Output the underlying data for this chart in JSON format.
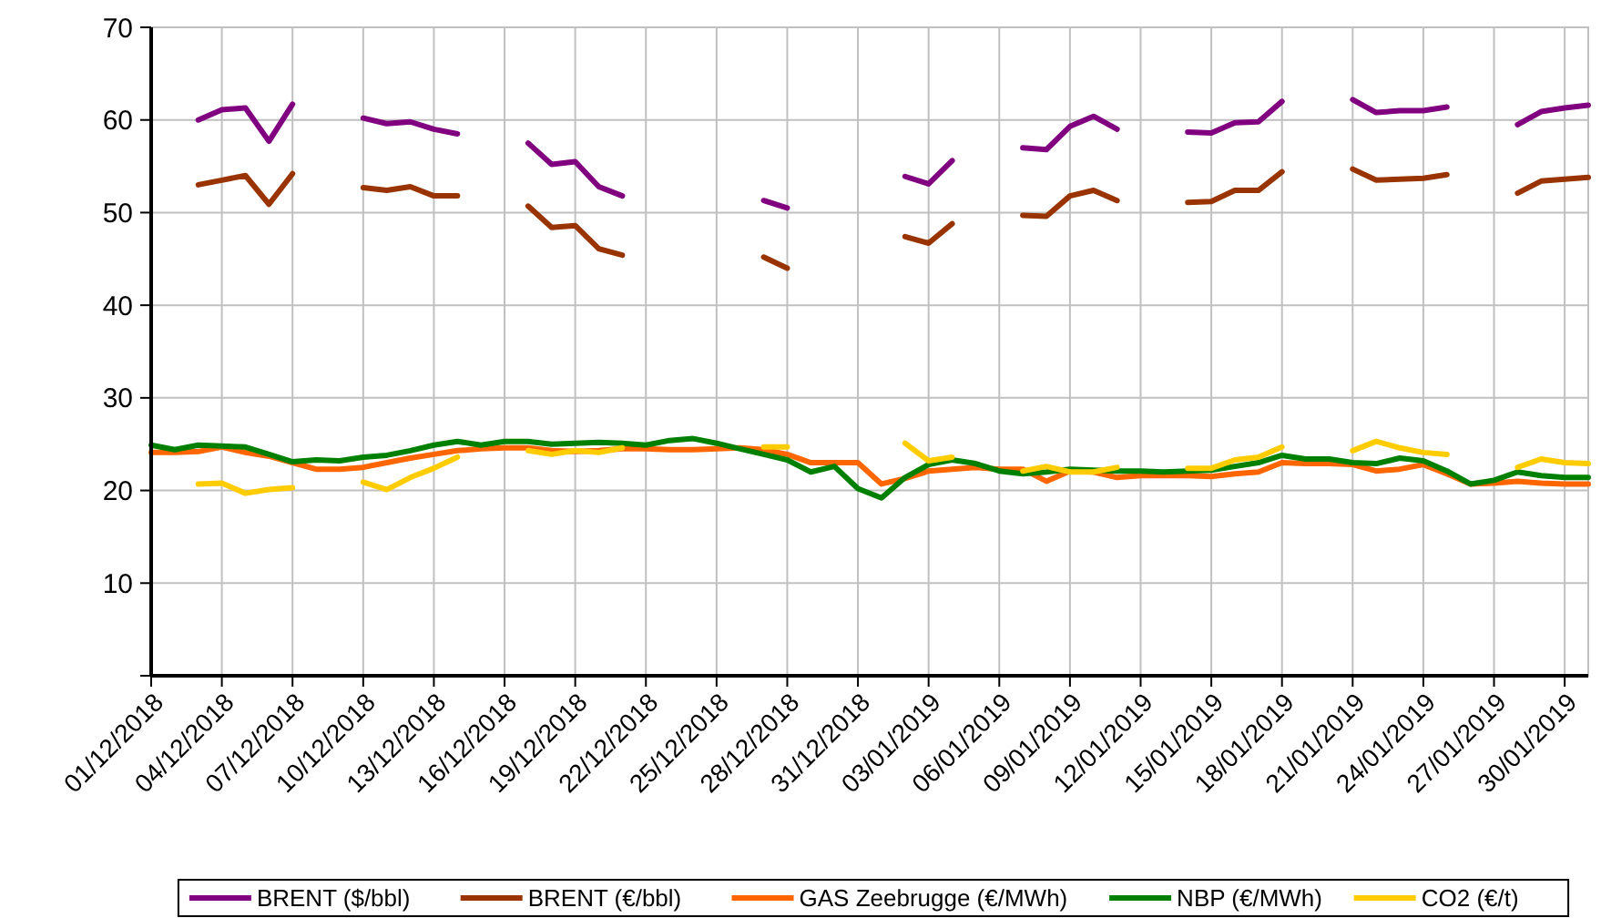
{
  "chart_data": {
    "type": "line",
    "x": [
      "2018-12-01",
      "2018-12-02",
      "2018-12-03",
      "2018-12-04",
      "2018-12-05",
      "2018-12-06",
      "2018-12-07",
      "2018-12-08",
      "2018-12-09",
      "2018-12-10",
      "2018-12-11",
      "2018-12-12",
      "2018-12-13",
      "2018-12-14",
      "2018-12-15",
      "2018-12-16",
      "2018-12-17",
      "2018-12-18",
      "2018-12-19",
      "2018-12-20",
      "2018-12-21",
      "2018-12-22",
      "2018-12-23",
      "2018-12-24",
      "2018-12-25",
      "2018-12-26",
      "2018-12-27",
      "2018-12-28",
      "2018-12-29",
      "2018-12-30",
      "2018-12-31",
      "2019-01-01",
      "2019-01-02",
      "2019-01-03",
      "2019-01-04",
      "2019-01-05",
      "2019-01-06",
      "2019-01-07",
      "2019-01-08",
      "2019-01-09",
      "2019-01-10",
      "2019-01-11",
      "2019-01-12",
      "2019-01-13",
      "2019-01-14",
      "2019-01-15",
      "2019-01-16",
      "2019-01-17",
      "2019-01-18",
      "2019-01-19",
      "2019-01-20",
      "2019-01-21",
      "2019-01-22",
      "2019-01-23",
      "2019-01-24",
      "2019-01-25",
      "2019-01-26",
      "2019-01-27",
      "2019-01-28",
      "2019-01-29",
      "2019-01-30",
      "2019-01-31"
    ],
    "series": [
      {
        "name": "BRENT ($/bbl)",
        "color": "#800080",
        "values": [
          null,
          null,
          60.0,
          61.1,
          61.3,
          57.7,
          61.7,
          null,
          null,
          60.2,
          59.6,
          59.8,
          59.0,
          58.5,
          null,
          null,
          57.5,
          55.2,
          55.5,
          52.8,
          51.8,
          null,
          null,
          null,
          null,
          null,
          51.3,
          50.5,
          null,
          null,
          null,
          null,
          53.9,
          53.1,
          55.6,
          null,
          null,
          57.0,
          56.8,
          59.3,
          60.4,
          59.0,
          null,
          null,
          58.7,
          58.6,
          59.7,
          59.8,
          62.0,
          null,
          null,
          62.2,
          60.8,
          61.0,
          61.0,
          61.4,
          null,
          null,
          59.5,
          60.9,
          61.3,
          61.6
        ]
      },
      {
        "name": "BRENT (€/bbl)",
        "color": "#993300",
        "values": [
          null,
          null,
          53.0,
          53.5,
          54.0,
          50.9,
          54.2,
          null,
          null,
          52.7,
          52.4,
          52.8,
          51.8,
          51.8,
          null,
          null,
          50.7,
          48.4,
          48.6,
          46.1,
          45.4,
          null,
          null,
          null,
          null,
          null,
          45.2,
          44.0,
          null,
          null,
          null,
          null,
          47.4,
          46.7,
          48.8,
          null,
          null,
          49.7,
          49.6,
          51.8,
          52.4,
          51.3,
          null,
          null,
          51.1,
          51.2,
          52.4,
          52.4,
          54.4,
          null,
          null,
          54.7,
          53.5,
          53.6,
          53.7,
          54.1,
          null,
          null,
          52.1,
          53.4,
          53.6,
          53.8
        ]
      },
      {
        "name": "GAS Zeebrugge (€/MWh)",
        "color": "#ff6600",
        "values": [
          24.1,
          24.1,
          24.2,
          24.7,
          24.1,
          23.7,
          23.0,
          22.3,
          22.3,
          22.5,
          23.0,
          23.5,
          23.9,
          24.3,
          24.5,
          24.6,
          24.6,
          24.3,
          24.2,
          24.3,
          24.5,
          24.5,
          24.4,
          24.4,
          24.5,
          24.6,
          24.4,
          23.9,
          23.0,
          23.0,
          23.0,
          20.7,
          21.3,
          22.1,
          22.3,
          22.5,
          22.3,
          22.3,
          21.0,
          22.1,
          22.0,
          21.4,
          21.6,
          21.6,
          21.6,
          21.5,
          21.8,
          22.0,
          23.0,
          22.9,
          22.9,
          22.8,
          22.1,
          22.3,
          22.8,
          21.8,
          20.7,
          20.8,
          21.0,
          20.8,
          20.7,
          20.7
        ]
      },
      {
        "name": "NBP (€/MWh)",
        "color": "#008000",
        "values": [
          24.9,
          24.4,
          24.9,
          24.8,
          24.7,
          23.9,
          23.1,
          23.3,
          23.2,
          23.6,
          23.8,
          24.3,
          24.9,
          25.3,
          24.9,
          25.3,
          25.3,
          25.0,
          25.1,
          25.2,
          25.1,
          24.9,
          25.4,
          25.6,
          25.1,
          24.5,
          23.9,
          23.3,
          22.0,
          22.6,
          20.2,
          19.2,
          21.4,
          22.8,
          23.3,
          22.9,
          22.1,
          21.8,
          22.0,
          22.3,
          22.2,
          22.1,
          22.1,
          22.0,
          22.1,
          22.2,
          22.6,
          23.0,
          23.8,
          23.4,
          23.4,
          23.0,
          22.9,
          23.5,
          23.2,
          22.1,
          20.7,
          21.1,
          22.0,
          21.6,
          21.4,
          21.4
        ]
      },
      {
        "name": "CO2 (€/t)",
        "color": "#ffcc00",
        "values": [
          null,
          null,
          20.7,
          20.8,
          19.7,
          20.1,
          20.3,
          null,
          null,
          20.9,
          20.1,
          21.4,
          22.4,
          23.6,
          null,
          null,
          24.3,
          23.9,
          24.3,
          24.1,
          24.6,
          null,
          null,
          null,
          null,
          null,
          24.7,
          24.7,
          null,
          null,
          null,
          null,
          25.1,
          23.2,
          23.6,
          null,
          null,
          22.1,
          22.6,
          22.0,
          22.0,
          22.5,
          null,
          null,
          22.4,
          22.4,
          23.3,
          23.6,
          24.7,
          null,
          null,
          24.3,
          25.3,
          24.6,
          24.1,
          23.9,
          null,
          null,
          22.5,
          23.4,
          23.0,
          22.9
        ]
      }
    ],
    "xlim": [
      "2018-12-01",
      "2019-01-31"
    ],
    "xticks": [
      {
        "value": "2018-12-01",
        "label": "01/12/2018"
      },
      {
        "value": "2018-12-04",
        "label": "04/12/2018"
      },
      {
        "value": "2018-12-07",
        "label": "07/12/2018"
      },
      {
        "value": "2018-12-10",
        "label": "10/12/2018"
      },
      {
        "value": "2018-12-13",
        "label": "13/12/2018"
      },
      {
        "value": "2018-12-16",
        "label": "16/12/2018"
      },
      {
        "value": "2018-12-19",
        "label": "19/12/2018"
      },
      {
        "value": "2018-12-22",
        "label": "22/12/2018"
      },
      {
        "value": "2018-12-25",
        "label": "25/12/2018"
      },
      {
        "value": "2018-12-28",
        "label": "28/12/2018"
      },
      {
        "value": "2018-12-31",
        "label": "31/12/2018"
      },
      {
        "value": "2019-01-03",
        "label": "03/01/2019"
      },
      {
        "value": "2019-01-06",
        "label": "06/01/2019"
      },
      {
        "value": "2019-01-09",
        "label": "09/01/2019"
      },
      {
        "value": "2019-01-12",
        "label": "12/01/2019"
      },
      {
        "value": "2019-01-15",
        "label": "15/01/2019"
      },
      {
        "value": "2019-01-18",
        "label": "18/01/2019"
      },
      {
        "value": "2019-01-21",
        "label": "21/01/2019"
      },
      {
        "value": "2019-01-24",
        "label": "24/01/2019"
      },
      {
        "value": "2019-01-27",
        "label": "27/01/2019"
      },
      {
        "value": "2019-01-30",
        "label": "30/01/2019"
      }
    ],
    "ylim": [
      0,
      70
    ],
    "yticks": [
      {
        "value": 0,
        "label": null
      },
      10,
      20,
      30,
      40,
      50,
      60,
      70
    ],
    "grid": true,
    "legend": "bottom",
    "marker": "none",
    "line_style": "solid"
  }
}
